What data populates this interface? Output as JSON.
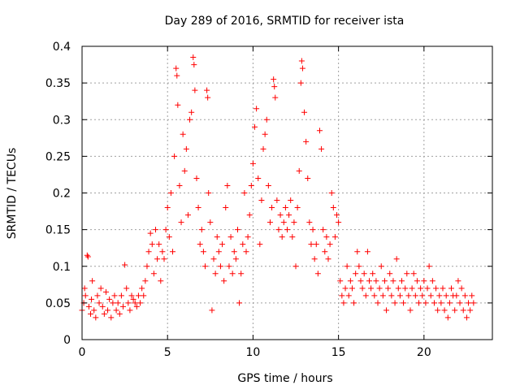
{
  "chart_data": {
    "type": "scatter",
    "title": "Day 289 of 2016, SRMTID for receiver ista",
    "xlabel": "GPS time / hours",
    "ylabel": "SRMTID / TECUs",
    "xlim": [
      0,
      24
    ],
    "ylim": [
      0,
      0.4
    ],
    "xticks": [
      0,
      5,
      10,
      15,
      20
    ],
    "yticks": [
      0,
      0.05,
      0.1,
      0.15,
      0.2,
      0.25,
      0.3,
      0.35,
      0.4
    ],
    "xtick_labels": [
      "0",
      "5",
      "10",
      "15",
      "20"
    ],
    "ytick_labels": [
      "0",
      "0.05",
      "0.1",
      "0.15",
      "0.2",
      "0.25",
      "0.3",
      "0.35",
      "0.4"
    ],
    "grid": true,
    "marker": "plus",
    "color": "#ff0000",
    "series": [
      {
        "points": [
          [
            0.0,
            0.04
          ],
          [
            0.1,
            0.05
          ],
          [
            0.15,
            0.07
          ],
          [
            0.2,
            0.06
          ],
          [
            0.3,
            0.115
          ],
          [
            0.35,
            0.113
          ],
          [
            0.4,
            0.045
          ],
          [
            0.5,
            0.035
          ],
          [
            0.55,
            0.055
          ],
          [
            0.6,
            0.08
          ],
          [
            0.7,
            0.04
          ],
          [
            0.8,
            0.03
          ],
          [
            0.9,
            0.06
          ],
          [
            1.0,
            0.05
          ],
          [
            1.1,
            0.07
          ],
          [
            1.2,
            0.045
          ],
          [
            1.3,
            0.035
          ],
          [
            1.4,
            0.065
          ],
          [
            1.5,
            0.04
          ],
          [
            1.6,
            0.055
          ],
          [
            1.7,
            0.03
          ],
          [
            1.8,
            0.05
          ],
          [
            1.9,
            0.06
          ],
          [
            2.0,
            0.04
          ],
          [
            2.1,
            0.05
          ],
          [
            2.2,
            0.035
          ],
          [
            2.3,
            0.06
          ],
          [
            2.4,
            0.045
          ],
          [
            2.5,
            0.102
          ],
          [
            2.6,
            0.07
          ],
          [
            2.7,
            0.05
          ],
          [
            2.8,
            0.04
          ],
          [
            2.9,
            0.06
          ],
          [
            3.0,
            0.055
          ],
          [
            3.1,
            0.05
          ],
          [
            3.2,
            0.045
          ],
          [
            3.3,
            0.06
          ],
          [
            3.4,
            0.05
          ],
          [
            3.5,
            0.07
          ],
          [
            3.6,
            0.06
          ],
          [
            3.7,
            0.08
          ],
          [
            3.8,
            0.1
          ],
          [
            3.9,
            0.12
          ],
          [
            4.0,
            0.145
          ],
          [
            4.1,
            0.13
          ],
          [
            4.2,
            0.09
          ],
          [
            4.3,
            0.15
          ],
          [
            4.4,
            0.11
          ],
          [
            4.5,
            0.13
          ],
          [
            4.6,
            0.08
          ],
          [
            4.7,
            0.12
          ],
          [
            4.8,
            0.11
          ],
          [
            4.9,
            0.15
          ],
          [
            5.0,
            0.18
          ],
          [
            5.1,
            0.14
          ],
          [
            5.2,
            0.2
          ],
          [
            5.3,
            0.12
          ],
          [
            5.4,
            0.25
          ],
          [
            5.5,
            0.37
          ],
          [
            5.55,
            0.36
          ],
          [
            5.6,
            0.32
          ],
          [
            5.7,
            0.21
          ],
          [
            5.8,
            0.16
          ],
          [
            5.9,
            0.28
          ],
          [
            6.0,
            0.23
          ],
          [
            6.1,
            0.26
          ],
          [
            6.2,
            0.17
          ],
          [
            6.3,
            0.3
          ],
          [
            6.4,
            0.31
          ],
          [
            6.5,
            0.385
          ],
          [
            6.55,
            0.375
          ],
          [
            6.6,
            0.34
          ],
          [
            6.7,
            0.22
          ],
          [
            6.8,
            0.18
          ],
          [
            6.9,
            0.13
          ],
          [
            7.0,
            0.15
          ],
          [
            7.1,
            0.12
          ],
          [
            7.2,
            0.1
          ],
          [
            7.3,
            0.34
          ],
          [
            7.35,
            0.33
          ],
          [
            7.4,
            0.2
          ],
          [
            7.5,
            0.16
          ],
          [
            7.6,
            0.04
          ],
          [
            7.7,
            0.11
          ],
          [
            7.8,
            0.09
          ],
          [
            7.9,
            0.14
          ],
          [
            8.0,
            0.12
          ],
          [
            8.1,
            0.1
          ],
          [
            8.2,
            0.13
          ],
          [
            8.3,
            0.08
          ],
          [
            8.4,
            0.18
          ],
          [
            8.5,
            0.21
          ],
          [
            8.6,
            0.1
          ],
          [
            8.7,
            0.14
          ],
          [
            8.8,
            0.09
          ],
          [
            8.9,
            0.12
          ],
          [
            9.0,
            0.11
          ],
          [
            9.1,
            0.15
          ],
          [
            9.2,
            0.05
          ],
          [
            9.3,
            0.09
          ],
          [
            9.4,
            0.13
          ],
          [
            9.5,
            0.2
          ],
          [
            9.6,
            0.12
          ],
          [
            9.7,
            0.14
          ],
          [
            9.8,
            0.17
          ],
          [
            9.9,
            0.21
          ],
          [
            10.0,
            0.24
          ],
          [
            10.1,
            0.29
          ],
          [
            10.2,
            0.315
          ],
          [
            10.3,
            0.22
          ],
          [
            10.4,
            0.13
          ],
          [
            10.5,
            0.19
          ],
          [
            10.6,
            0.26
          ],
          [
            10.7,
            0.28
          ],
          [
            10.8,
            0.3
          ],
          [
            10.9,
            0.21
          ],
          [
            11.0,
            0.16
          ],
          [
            11.1,
            0.18
          ],
          [
            11.2,
            0.355
          ],
          [
            11.25,
            0.345
          ],
          [
            11.3,
            0.33
          ],
          [
            11.4,
            0.19
          ],
          [
            11.5,
            0.15
          ],
          [
            11.6,
            0.17
          ],
          [
            11.7,
            0.14
          ],
          [
            11.8,
            0.16
          ],
          [
            11.9,
            0.18
          ],
          [
            12.0,
            0.15
          ],
          [
            12.1,
            0.17
          ],
          [
            12.2,
            0.19
          ],
          [
            12.3,
            0.14
          ],
          [
            12.4,
            0.16
          ],
          [
            12.5,
            0.1
          ],
          [
            12.6,
            0.18
          ],
          [
            12.7,
            0.23
          ],
          [
            12.8,
            0.35
          ],
          [
            12.85,
            0.38
          ],
          [
            12.9,
            0.37
          ],
          [
            13.0,
            0.31
          ],
          [
            13.1,
            0.27
          ],
          [
            13.2,
            0.22
          ],
          [
            13.3,
            0.16
          ],
          [
            13.4,
            0.13
          ],
          [
            13.5,
            0.15
          ],
          [
            13.6,
            0.11
          ],
          [
            13.7,
            0.13
          ],
          [
            13.8,
            0.09
          ],
          [
            13.9,
            0.285
          ],
          [
            14.0,
            0.26
          ],
          [
            14.1,
            0.15
          ],
          [
            14.2,
            0.12
          ],
          [
            14.3,
            0.14
          ],
          [
            14.4,
            0.11
          ],
          [
            14.5,
            0.13
          ],
          [
            14.6,
            0.2
          ],
          [
            14.7,
            0.18
          ],
          [
            14.8,
            0.14
          ],
          [
            14.9,
            0.17
          ],
          [
            15.0,
            0.16
          ],
          [
            15.1,
            0.08
          ],
          [
            15.2,
            0.06
          ],
          [
            15.3,
            0.05
          ],
          [
            15.4,
            0.07
          ],
          [
            15.5,
            0.1
          ],
          [
            15.6,
            0.06
          ],
          [
            15.7,
            0.08
          ],
          [
            15.8,
            0.07
          ],
          [
            15.9,
            0.05
          ],
          [
            16.0,
            0.09
          ],
          [
            16.1,
            0.12
          ],
          [
            16.2,
            0.1
          ],
          [
            16.3,
            0.08
          ],
          [
            16.4,
            0.07
          ],
          [
            16.5,
            0.09
          ],
          [
            16.6,
            0.06
          ],
          [
            16.7,
            0.12
          ],
          [
            16.8,
            0.08
          ],
          [
            16.9,
            0.07
          ],
          [
            17.0,
            0.09
          ],
          [
            17.1,
            0.06
          ],
          [
            17.2,
            0.08
          ],
          [
            17.3,
            0.05
          ],
          [
            17.4,
            0.07
          ],
          [
            17.5,
            0.1
          ],
          [
            17.6,
            0.06
          ],
          [
            17.7,
            0.08
          ],
          [
            17.8,
            0.04
          ],
          [
            17.9,
            0.07
          ],
          [
            18.0,
            0.09
          ],
          [
            18.1,
            0.06
          ],
          [
            18.2,
            0.08
          ],
          [
            18.3,
            0.05
          ],
          [
            18.4,
            0.11
          ],
          [
            18.5,
            0.07
          ],
          [
            18.6,
            0.06
          ],
          [
            18.7,
            0.08
          ],
          [
            18.8,
            0.05
          ],
          [
            18.9,
            0.07
          ],
          [
            19.0,
            0.09
          ],
          [
            19.1,
            0.06
          ],
          [
            19.2,
            0.04
          ],
          [
            19.3,
            0.07
          ],
          [
            19.4,
            0.09
          ],
          [
            19.5,
            0.06
          ],
          [
            19.6,
            0.08
          ],
          [
            19.7,
            0.05
          ],
          [
            19.8,
            0.07
          ],
          [
            19.9,
            0.06
          ],
          [
            20.0,
            0.08
          ],
          [
            20.1,
            0.05
          ],
          [
            20.2,
            0.07
          ],
          [
            20.3,
            0.1
          ],
          [
            20.4,
            0.06
          ],
          [
            20.5,
            0.08
          ],
          [
            20.6,
            0.05
          ],
          [
            20.7,
            0.07
          ],
          [
            20.8,
            0.04
          ],
          [
            20.9,
            0.06
          ],
          [
            21.0,
            0.05
          ],
          [
            21.1,
            0.07
          ],
          [
            21.2,
            0.04
          ],
          [
            21.3,
            0.06
          ],
          [
            21.4,
            0.03
          ],
          [
            21.5,
            0.05
          ],
          [
            21.6,
            0.07
          ],
          [
            21.7,
            0.06
          ],
          [
            21.8,
            0.04
          ],
          [
            21.9,
            0.06
          ],
          [
            22.0,
            0.08
          ],
          [
            22.1,
            0.05
          ],
          [
            22.2,
            0.07
          ],
          [
            22.3,
            0.04
          ],
          [
            22.4,
            0.06
          ],
          [
            22.5,
            0.03
          ],
          [
            22.6,
            0.05
          ],
          [
            22.7,
            0.04
          ],
          [
            22.8,
            0.06
          ],
          [
            22.9,
            0.05
          ]
        ]
      }
    ]
  }
}
